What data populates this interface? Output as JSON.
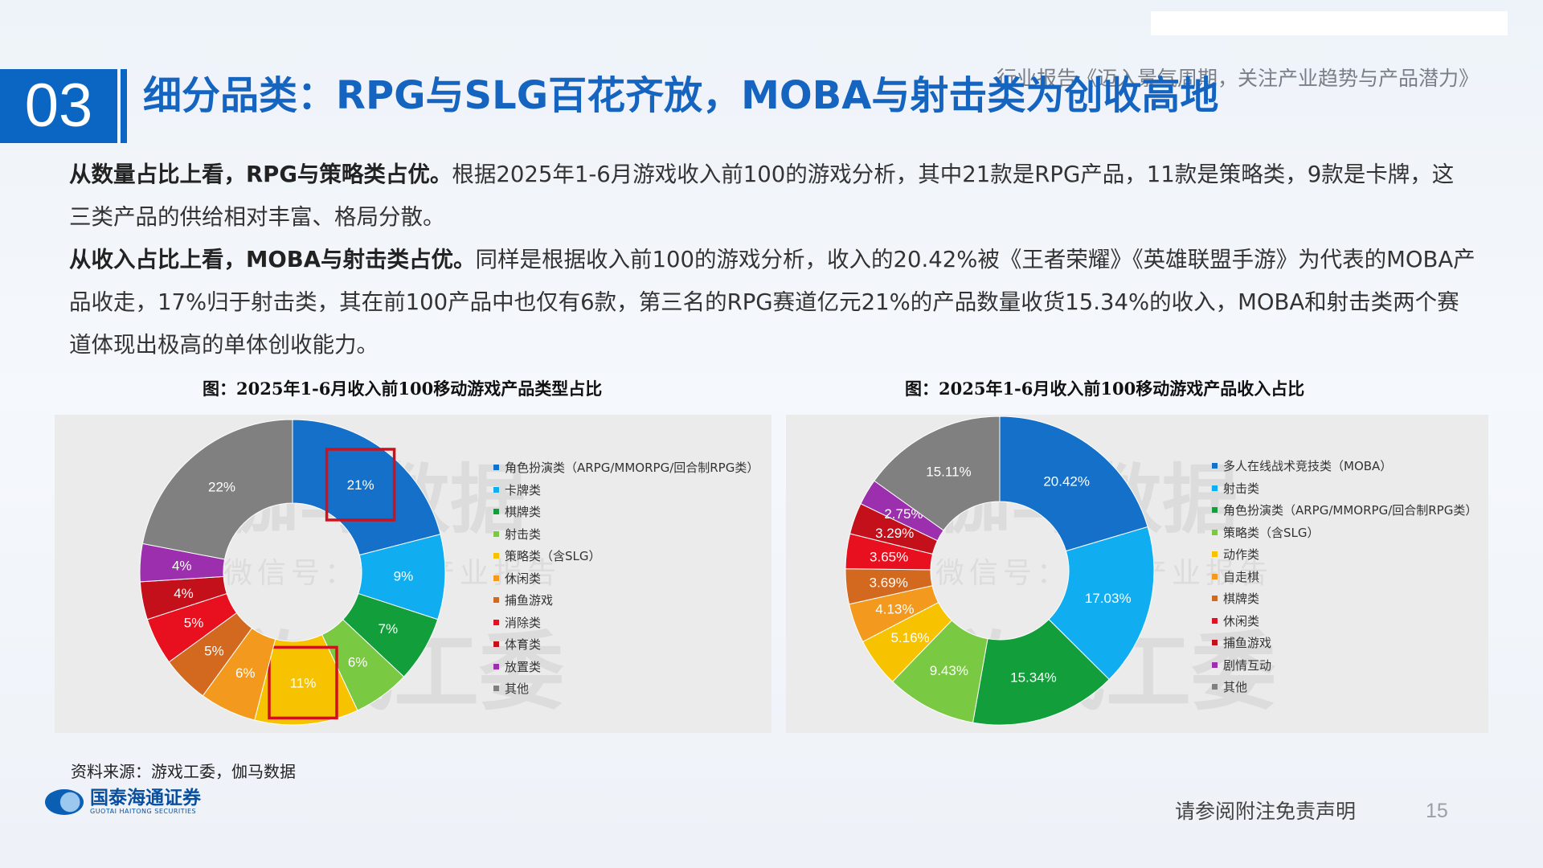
{
  "header": {
    "section_number": "03",
    "title": "细分品类：RPG与SLG百花齐放，MOBA与射击类为创收高地",
    "report_title": "行业报告《迈入景气周期，关注产业趋势与产品潜力》"
  },
  "body": {
    "p1_bold": "从数量占比上看，RPG与策略类占优。",
    "p1_text": "根据2025年1-6月游戏收入前100的游戏分析，其中21款是RPG产品，11款是策略类，9款是卡牌，这三类产品的供给相对丰富、格局分散。",
    "p2_bold": "从收入占比上看，MOBA与射击类占优。",
    "p2_text": "同样是根据收入前100的游戏分析，收入的20.42%被《王者荣耀》《英雄联盟手游》为代表的MOBA产品收走，17%归于射击类，其在前100产品中也仅有6款，第三名的RPG赛道亿元21%的产品数量收货15.34%的收入，MOBA和射击类两个赛道体现出极高的单体创收能力。"
  },
  "watermark": {
    "line1": "伽马数据",
    "line2": "微信号：游戏产业报告",
    "line3": "游戏工委"
  },
  "chart_data": [
    {
      "type": "pie",
      "title": "图：2025年1-6月收入前100移动游戏产品类型占比",
      "categories": [
        "角色扮演类（ARPG/MMORPG/回合制RPG类）",
        "卡牌类",
        "棋牌类",
        "射击类",
        "策略类（含SLG）",
        "休闲类",
        "捕鱼游戏",
        "消除类",
        "体育类",
        "放置类",
        "其他"
      ],
      "values": [
        21,
        9,
        7,
        6,
        11,
        6,
        5,
        5,
        4,
        4,
        22
      ],
      "labels": [
        "21%",
        "9%",
        "7%",
        "6%",
        "11%",
        "6%",
        "5%",
        "5%",
        "4%",
        "4%",
        "22%"
      ],
      "colors": [
        "#1470c8",
        "#10aef0",
        "#139e3c",
        "#7ac943",
        "#f7c300",
        "#f39a1e",
        "#d2691e",
        "#e8101e",
        "#c4101a",
        "#9b2fae",
        "#808080"
      ],
      "highlighted": [
        "21%",
        "11%"
      ]
    },
    {
      "type": "pie",
      "title": "图：2025年1-6月收入前100移动游戏产品收入占比",
      "categories": [
        "多人在线战术竞技类（MOBA）",
        "射击类",
        "角色扮演类（ARPG/MMORPG/回合制RPG类）",
        "策略类（含SLG）",
        "动作类",
        "自走棋",
        "棋牌类",
        "休闲类",
        "捕鱼游戏",
        "剧情互动",
        "其他"
      ],
      "values": [
        20.42,
        17.03,
        15.34,
        9.43,
        5.16,
        4.13,
        3.69,
        3.65,
        3.29,
        2.75,
        15.11
      ],
      "labels": [
        "20.42%",
        "17.03%",
        "15.34%",
        "9.43%",
        "5.16%",
        "4.13%",
        "3.69%",
        "3.65%",
        "3.29%",
        "2.75%",
        "15.11%"
      ],
      "colors": [
        "#1470c8",
        "#10aef0",
        "#139e3c",
        "#7ac943",
        "#f7c300",
        "#f39a1e",
        "#d2691e",
        "#e8101e",
        "#c4101a",
        "#9b2fae",
        "#808080"
      ]
    }
  ],
  "footer": {
    "source": "资料来源：游戏工委，伽马数据",
    "company_cn": "国泰海通证券",
    "company_en": "GUOTAI HAITONG SECURITIES",
    "disclaimer": "请参阅附注免责声明",
    "page": "15"
  }
}
